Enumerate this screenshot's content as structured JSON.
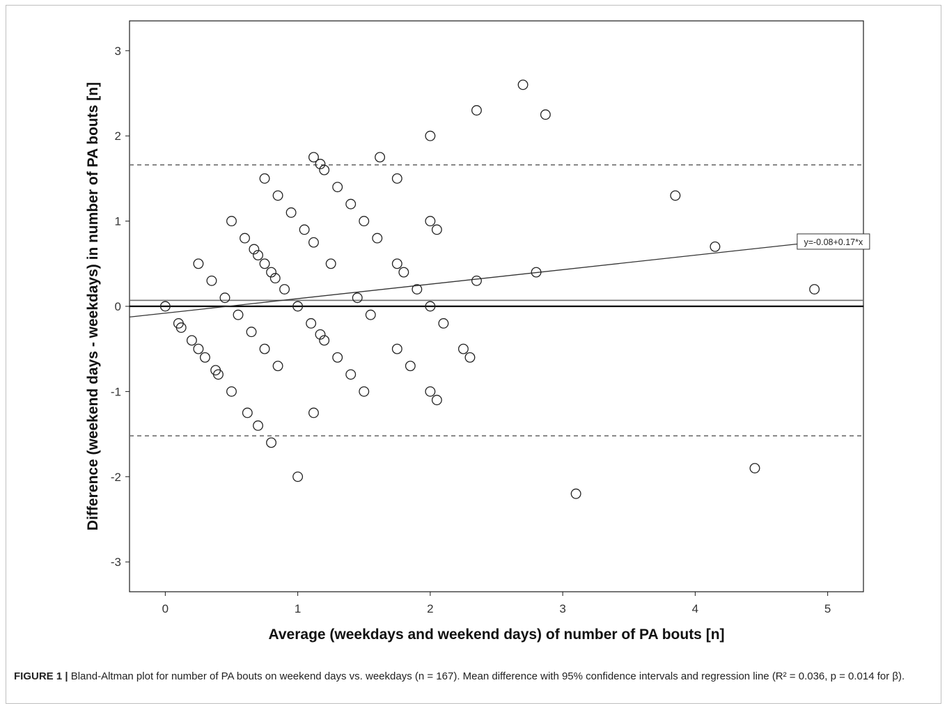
{
  "chart_data": {
    "type": "scatter",
    "xlabel": "Average (weekdays and weekend days) of number of PA bouts [n]",
    "ylabel": "Difference (weekend days - weekdays) in number of PA bouts [n]",
    "xlim": [
      -0.27,
      5.27
    ],
    "ylim": [
      -3.35,
      3.35
    ],
    "xticks": [
      0,
      1,
      2,
      3,
      4,
      5
    ],
    "yticks": [
      -3,
      -2,
      -1,
      0,
      1,
      2,
      3
    ],
    "grid": false,
    "mean_difference": 0.07,
    "loa_upper": 1.66,
    "loa_lower": -1.52,
    "zero_line": 0,
    "regression": {
      "intercept": -0.08,
      "slope": 0.17,
      "label": "y=-0.08+0.17*x"
    },
    "points": [
      [
        0,
        0
      ],
      [
        0.1,
        -0.2
      ],
      [
        0.12,
        -0.25
      ],
      [
        0.2,
        -0.4
      ],
      [
        0.25,
        0.5
      ],
      [
        0.25,
        -0.5
      ],
      [
        0.3,
        -0.6
      ],
      [
        0.35,
        0.3
      ],
      [
        0.38,
        -0.75
      ],
      [
        0.4,
        -0.8
      ],
      [
        0.45,
        0.1
      ],
      [
        0.5,
        1.0
      ],
      [
        0.5,
        -1.0
      ],
      [
        0.55,
        -0.1
      ],
      [
        0.6,
        0.8
      ],
      [
        0.62,
        -1.25
      ],
      [
        0.65,
        -0.3
      ],
      [
        0.67,
        0.67
      ],
      [
        0.7,
        0.6
      ],
      [
        0.7,
        -1.4
      ],
      [
        0.75,
        1.5
      ],
      [
        0.75,
        0.5
      ],
      [
        0.75,
        -0.5
      ],
      [
        0.8,
        0.4
      ],
      [
        0.8,
        -1.6
      ],
      [
        0.83,
        0.33
      ],
      [
        0.85,
        1.3
      ],
      [
        0.85,
        -0.7
      ],
      [
        0.9,
        0.2
      ],
      [
        0.95,
        1.1
      ],
      [
        1.0,
        0
      ],
      [
        1.0,
        -2.0
      ],
      [
        1.05,
        0.9
      ],
      [
        1.1,
        -0.2
      ],
      [
        1.12,
        1.75
      ],
      [
        1.12,
        0.75
      ],
      [
        1.12,
        -1.25
      ],
      [
        1.17,
        1.67
      ],
      [
        1.17,
        -0.33
      ],
      [
        1.2,
        1.6
      ],
      [
        1.2,
        -0.4
      ],
      [
        1.25,
        0.5
      ],
      [
        1.3,
        1.4
      ],
      [
        1.3,
        -0.6
      ],
      [
        1.4,
        1.2
      ],
      [
        1.4,
        -0.8
      ],
      [
        1.45,
        0.1
      ],
      [
        1.5,
        1.0
      ],
      [
        1.5,
        -1.0
      ],
      [
        1.55,
        -0.1
      ],
      [
        1.6,
        0.8
      ],
      [
        1.62,
        1.75
      ],
      [
        1.75,
        1.5
      ],
      [
        1.75,
        0.5
      ],
      [
        1.75,
        -0.5
      ],
      [
        1.8,
        0.4
      ],
      [
        1.85,
        -0.7
      ],
      [
        1.9,
        0.2
      ],
      [
        2.0,
        2.0
      ],
      [
        2.0,
        1.0
      ],
      [
        2.0,
        0
      ],
      [
        2.0,
        -1.0
      ],
      [
        2.05,
        0.9
      ],
      [
        2.05,
        -1.1
      ],
      [
        2.1,
        -0.2
      ],
      [
        2.25,
        -0.5
      ],
      [
        2.3,
        -0.6
      ],
      [
        2.35,
        2.3
      ],
      [
        2.35,
        0.3
      ],
      [
        2.7,
        2.6
      ],
      [
        2.8,
        0.4
      ],
      [
        2.87,
        2.25
      ],
      [
        3.1,
        -2.2
      ],
      [
        3.85,
        1.3
      ],
      [
        4.15,
        0.7
      ],
      [
        4.45,
        -1.9
      ],
      [
        4.9,
        0.2
      ]
    ]
  },
  "caption": {
    "label": "FIGURE 1 |",
    "text": "Bland-Altman plot for number of PA bouts on weekend days vs. weekdays (n = 167). Mean difference with 95% confidence intervals and regression line (R² = 0.036, p = 0.014 for β)."
  },
  "colors": {
    "axis": "#1a1a1a",
    "marker": "#222222",
    "limit_lines": "#6e6e6e",
    "mean_line": "#6e6e6e",
    "zero_line": "#000000"
  }
}
